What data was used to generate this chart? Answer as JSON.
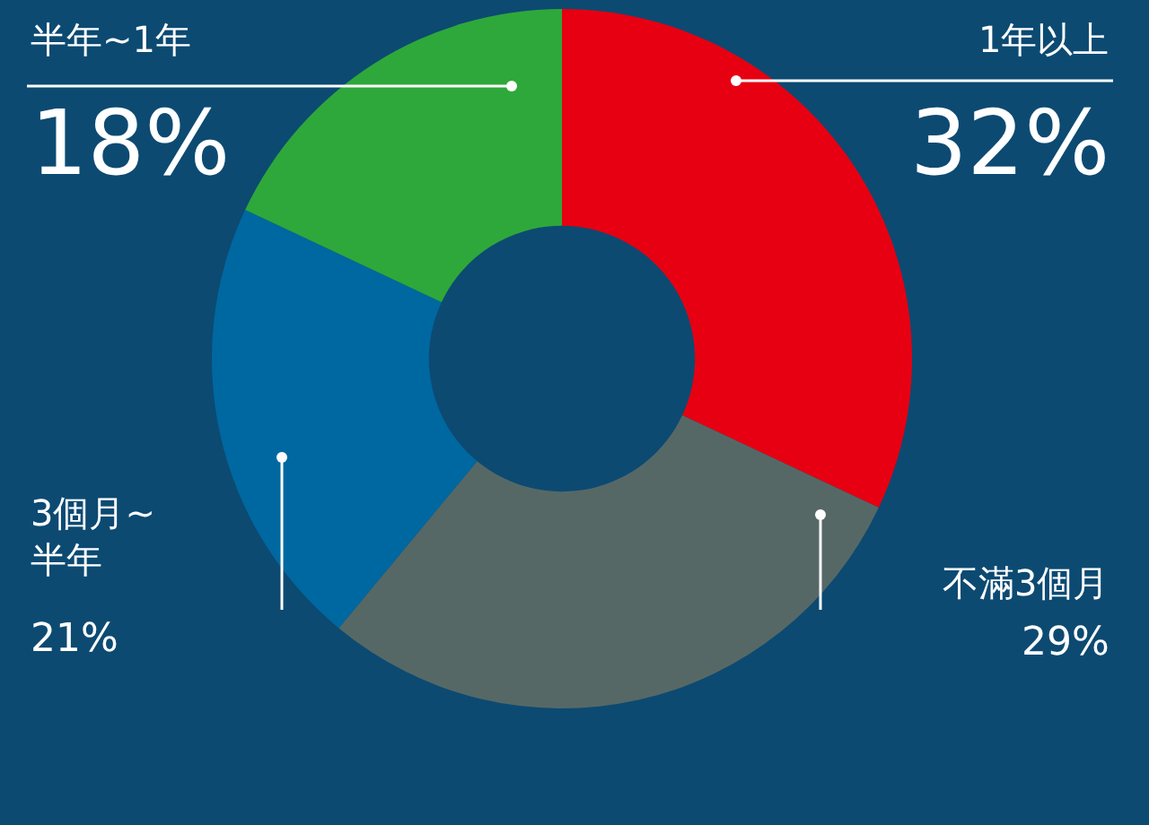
{
  "chart_data": {
    "type": "donut",
    "categories": [
      "1年以上",
      "不滿3個月",
      "3個月~\n半年",
      "半年~1年"
    ],
    "values": [
      32,
      29,
      21,
      18
    ],
    "value_labels": [
      "32%",
      "29%",
      "21%",
      "18%"
    ],
    "colors": [
      "#e60012",
      "#566866",
      "#0068a0",
      "#2ea83a"
    ],
    "legend": false
  }
}
